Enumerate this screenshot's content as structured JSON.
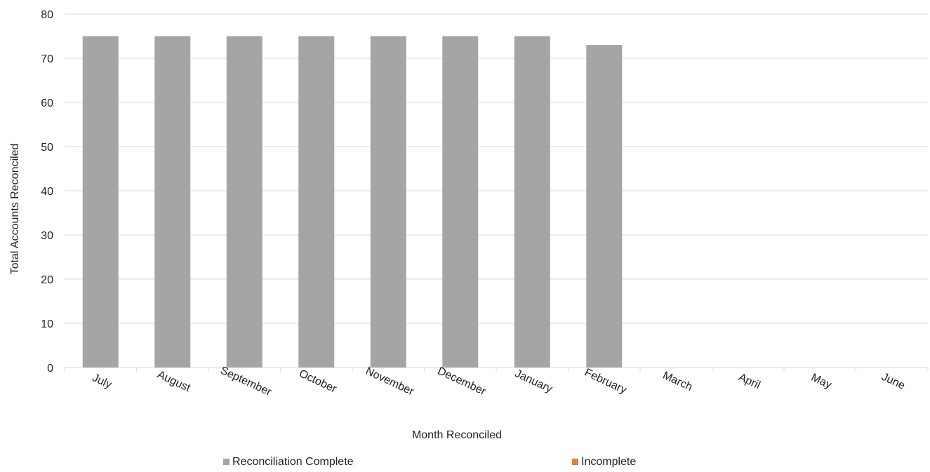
{
  "chart_data": {
    "type": "bar",
    "title": "",
    "xlabel": "Month Reconciled",
    "ylabel": "Total Accounts Reconciled",
    "ylim": [
      0,
      80
    ],
    "yticks": [
      0,
      10,
      20,
      30,
      40,
      50,
      60,
      70,
      80
    ],
    "grid": true,
    "legend_position": "bottom",
    "categories": [
      "July",
      "August",
      "September",
      "October",
      "November",
      "December",
      "January",
      "February",
      "March",
      "April",
      "May",
      "June"
    ],
    "series": [
      {
        "name": "Reconciliation Complete",
        "color": "#a5a5a5",
        "values": [
          75,
          75,
          75,
          75,
          75,
          75,
          75,
          73,
          0,
          0,
          0,
          0
        ]
      },
      {
        "name": "Incomplete",
        "color": "#ed7d31",
        "values": [
          0,
          0,
          0,
          0,
          0,
          0,
          0,
          0,
          0,
          0,
          0,
          0
        ]
      }
    ]
  }
}
